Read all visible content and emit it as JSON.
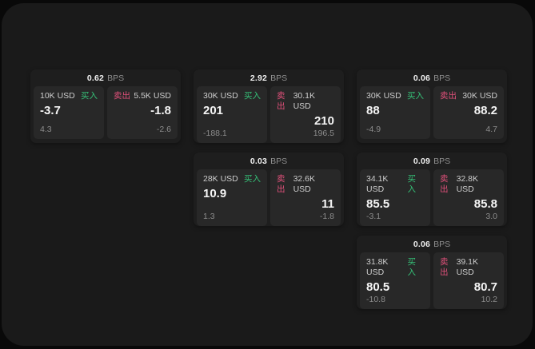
{
  "labels": {
    "buy": "买入",
    "sell": "卖出"
  },
  "bps_suffix": "BPS",
  "colors": {
    "buy_accent": "#35c077",
    "sell_accent": "#e0507a",
    "panel_bg": "#1a1a1a",
    "card_bg": "#1e1e1e",
    "tile_bg": "#282828"
  },
  "cards": [
    {
      "row": 1,
      "col": 1,
      "bps": "0.62",
      "buy": {
        "amount": "10K USD",
        "value": "-3.7",
        "delta": "4.3"
      },
      "sell": {
        "amount": "5.5K USD",
        "value": "-1.8",
        "delta": "-2.6"
      }
    },
    {
      "row": 1,
      "col": 2,
      "bps": "2.92",
      "buy": {
        "amount": "30K USD",
        "value": "201",
        "delta": "-188.1"
      },
      "sell": {
        "amount": "30.1K USD",
        "value": "210",
        "delta": "196.5"
      }
    },
    {
      "row": 1,
      "col": 3,
      "bps": "0.06",
      "buy": {
        "amount": "30K USD",
        "value": "88",
        "delta": "-4.9"
      },
      "sell": {
        "amount": "30K USD",
        "value": "88.2",
        "delta": "4.7"
      }
    },
    {
      "row": 2,
      "col": 2,
      "bps": "0.03",
      "buy": {
        "amount": "28K USD",
        "value": "10.9",
        "delta": "1.3"
      },
      "sell": {
        "amount": "32.6K USD",
        "value": "11",
        "delta": "-1.8"
      }
    },
    {
      "row": 2,
      "col": 3,
      "bps": "0.09",
      "buy": {
        "amount": "34.1K USD",
        "value": "85.5",
        "delta": "-3.1"
      },
      "sell": {
        "amount": "32.8K USD",
        "value": "85.8",
        "delta": "3.0"
      }
    },
    {
      "row": 3,
      "col": 3,
      "bps": "0.06",
      "buy": {
        "amount": "31.8K USD",
        "value": "80.5",
        "delta": "-10.8"
      },
      "sell": {
        "amount": "39.1K USD",
        "value": "80.7",
        "delta": "10.2"
      }
    }
  ]
}
